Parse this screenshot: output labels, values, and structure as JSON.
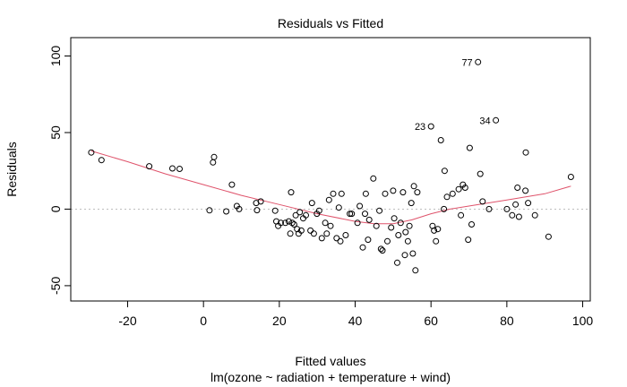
{
  "chart_data": {
    "type": "scatter",
    "title": "Residuals vs Fitted",
    "xlabel": "Fitted values",
    "ylabel": "Residuals",
    "subtitle": "lm(ozone ~ radiation + temperature + wind)",
    "xlim": [
      -35,
      102
    ],
    "ylim": [
      -60,
      112
    ],
    "x_ticks": [
      -20,
      0,
      20,
      40,
      60,
      80,
      100
    ],
    "y_ticks": [
      -50,
      0,
      50,
      100
    ],
    "reference_line_y": 0,
    "colors": {
      "points": "#000000",
      "smooth": "#DF536B",
      "reference": "#BEBEBE"
    },
    "points": [
      [
        -29.6,
        37
      ],
      [
        -26.9,
        32
      ],
      [
        -14.3,
        28
      ],
      [
        -8.2,
        26.6
      ],
      [
        -6.3,
        26.3
      ],
      [
        1.6,
        -0.8
      ],
      [
        2.5,
        30.5
      ],
      [
        2.8,
        34
      ],
      [
        6.0,
        -1.5
      ],
      [
        7.5,
        16
      ],
      [
        8.8,
        2
      ],
      [
        9.4,
        0
      ],
      [
        13.9,
        4
      ],
      [
        14.1,
        -0.7
      ],
      [
        15.1,
        5
      ],
      [
        18.9,
        -1
      ],
      [
        19.2,
        -8
      ],
      [
        19.7,
        -11
      ],
      [
        20.4,
        -9
      ],
      [
        21.6,
        -9
      ],
      [
        22.5,
        -8
      ],
      [
        22.9,
        -16
      ],
      [
        23.1,
        11
      ],
      [
        23.4,
        -9
      ],
      [
        23.9,
        -10
      ],
      [
        24.3,
        -4
      ],
      [
        24.7,
        -13
      ],
      [
        25.1,
        -16
      ],
      [
        25.4,
        -2
      ],
      [
        25.8,
        -14
      ],
      [
        26.3,
        -6
      ],
      [
        27.0,
        -4
      ],
      [
        28.2,
        -14
      ],
      [
        28.6,
        4
      ],
      [
        29.1,
        -16
      ],
      [
        29.9,
        -3
      ],
      [
        30.5,
        -1
      ],
      [
        31.2,
        -19
      ],
      [
        32.1,
        -9
      ],
      [
        32.5,
        -16
      ],
      [
        33.1,
        6
      ],
      [
        33.5,
        -11
      ],
      [
        34.2,
        10
      ],
      [
        35.1,
        -19
      ],
      [
        35.7,
        1
      ],
      [
        36.1,
        -21
      ],
      [
        36.4,
        10
      ],
      [
        37.5,
        -17
      ],
      [
        38.6,
        -3
      ],
      [
        39.1,
        -3
      ],
      [
        40.6,
        -9
      ],
      [
        41.2,
        2
      ],
      [
        42.0,
        -25
      ],
      [
        42.6,
        -3
      ],
      [
        42.8,
        10
      ],
      [
        43.4,
        -20
      ],
      [
        43.7,
        -7
      ],
      [
        44.8,
        20
      ],
      [
        45.6,
        -11
      ],
      [
        46.4,
        -1
      ],
      [
        46.8,
        -26
      ],
      [
        47.2,
        -27
      ],
      [
        47.9,
        10
      ],
      [
        48.5,
        -21
      ],
      [
        49.5,
        -12
      ],
      [
        50.0,
        12
      ],
      [
        50.3,
        -6
      ],
      [
        51.1,
        -35
      ],
      [
        51.4,
        -17
      ],
      [
        52.0,
        -9
      ],
      [
        52.6,
        11
      ],
      [
        53.1,
        -30
      ],
      [
        53.3,
        -15
      ],
      [
        53.9,
        -21
      ],
      [
        54.3,
        -11
      ],
      [
        54.8,
        4
      ],
      [
        55.2,
        -29
      ],
      [
        55.5,
        15
      ],
      [
        55.9,
        -40
      ],
      [
        56.4,
        11
      ],
      [
        60.0,
        54
      ],
      [
        60.4,
        -11
      ],
      [
        60.8,
        -14
      ],
      [
        61.3,
        -21
      ],
      [
        61.8,
        -13
      ],
      [
        62.6,
        45
      ],
      [
        63.4,
        0
      ],
      [
        63.6,
        25
      ],
      [
        64.2,
        8
      ],
      [
        65.7,
        10
      ],
      [
        67.3,
        13
      ],
      [
        67.9,
        -4
      ],
      [
        68.4,
        16
      ],
      [
        69.0,
        14
      ],
      [
        69.8,
        -20
      ],
      [
        70.2,
        40
      ],
      [
        70.7,
        -10
      ],
      [
        72.4,
        96
      ],
      [
        73.0,
        23
      ],
      [
        73.6,
        5
      ],
      [
        75.3,
        0
      ],
      [
        77.1,
        58
      ],
      [
        80.0,
        0
      ],
      [
        81.4,
        -4
      ],
      [
        82.3,
        3
      ],
      [
        82.8,
        14
      ],
      [
        83.2,
        -5
      ],
      [
        84.9,
        12
      ],
      [
        85.0,
        37
      ],
      [
        85.6,
        4
      ],
      [
        87.4,
        -4
      ],
      [
        91.0,
        -18
      ],
      [
        96.9,
        21
      ]
    ],
    "smooth": [
      [
        -29.6,
        38
      ],
      [
        -20,
        31
      ],
      [
        -10,
        23
      ],
      [
        0,
        16
      ],
      [
        10,
        9
      ],
      [
        20,
        3
      ],
      [
        30,
        -3
      ],
      [
        40,
        -8
      ],
      [
        45,
        -9.5
      ],
      [
        50,
        -9.5
      ],
      [
        55,
        -7
      ],
      [
        60,
        -3
      ],
      [
        65,
        0
      ],
      [
        70,
        2
      ],
      [
        80,
        6
      ],
      [
        90,
        10
      ],
      [
        96.9,
        15
      ]
    ],
    "annotations": [
      {
        "label": "77",
        "x": 72.4,
        "y": 96
      },
      {
        "label": "23",
        "x": 60.0,
        "y": 54
      },
      {
        "label": "34",
        "x": 77.1,
        "y": 58
      }
    ]
  }
}
